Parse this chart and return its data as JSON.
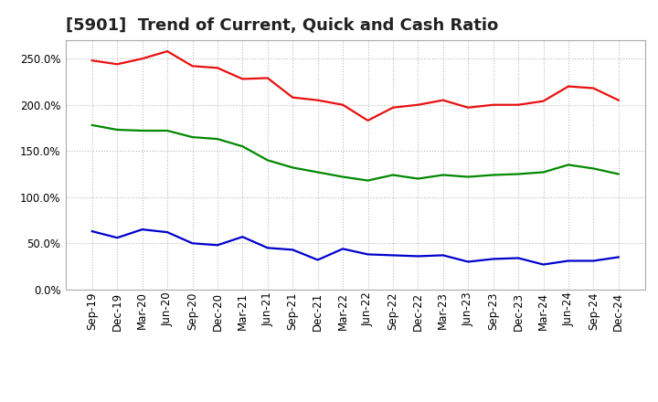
{
  "title": "[5901]  Trend of Current, Quick and Cash Ratio",
  "x_labels": [
    "Sep-19",
    "Dec-19",
    "Mar-20",
    "Jun-20",
    "Sep-20",
    "Dec-20",
    "Mar-21",
    "Jun-21",
    "Sep-21",
    "Dec-21",
    "Mar-22",
    "Jun-22",
    "Sep-22",
    "Dec-22",
    "Mar-23",
    "Jun-23",
    "Sep-23",
    "Dec-23",
    "Mar-24",
    "Jun-24",
    "Sep-24",
    "Dec-24"
  ],
  "current_ratio": [
    248,
    244,
    250,
    258,
    242,
    240,
    228,
    229,
    208,
    205,
    200,
    183,
    197,
    200,
    205,
    197,
    200,
    200,
    204,
    220,
    218,
    205
  ],
  "quick_ratio": [
    178,
    173,
    172,
    172,
    165,
    163,
    155,
    140,
    132,
    127,
    122,
    118,
    124,
    120,
    124,
    122,
    124,
    125,
    127,
    135,
    131,
    125
  ],
  "cash_ratio": [
    63,
    56,
    65,
    62,
    50,
    48,
    57,
    45,
    43,
    32,
    44,
    38,
    37,
    36,
    37,
    30,
    33,
    34,
    27,
    31,
    31,
    35
  ],
  "current_color": "#e81010",
  "quick_color": "#008800",
  "cash_color": "#0000cc",
  "ylim": [
    0,
    270
  ],
  "yticks": [
    0,
    50,
    100,
    150,
    200,
    250
  ],
  "background_color": "#ffffff",
  "grid_color": "#bbbbbb",
  "title_fontsize": 13,
  "tick_fontsize": 8.5,
  "legend_fontsize": 10
}
